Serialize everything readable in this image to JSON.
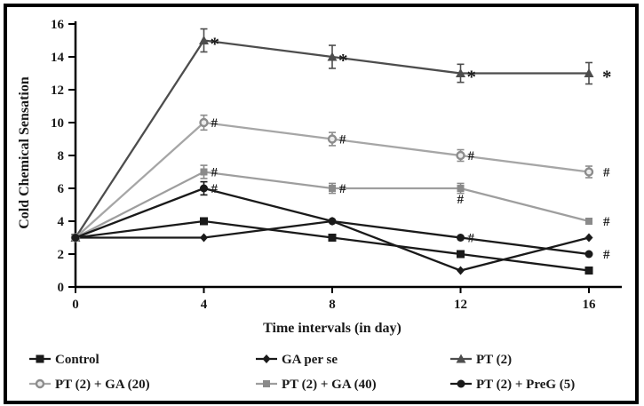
{
  "figure": {
    "background": "#ffffff",
    "border_color": "#000000"
  },
  "chart_data": {
    "type": "line",
    "title": "",
    "xlabel": "Time intervals (in day)",
    "ylabel": "Cold Chemical Sensation",
    "x": [
      0,
      4,
      8,
      12,
      16
    ],
    "xlim": [
      0,
      17
    ],
    "ylim": [
      0,
      16
    ],
    "ytick_step": 2,
    "grid": false,
    "legend_position": "bottom",
    "series": [
      {
        "name": "Control",
        "marker": "square",
        "color": "#1a1a1a",
        "marker_color": "#1a1a1a",
        "values": [
          3,
          4,
          3,
          2,
          1
        ],
        "errors": [
          0,
          0,
          0,
          0,
          0
        ],
        "annotations": []
      },
      {
        "name": "GA per se",
        "marker": "diamond",
        "color": "#1a1a1a",
        "marker_color": "#1a1a1a",
        "values": [
          3,
          3,
          4,
          1,
          3
        ],
        "errors": [
          0,
          0,
          0,
          0,
          0
        ],
        "annotations": []
      },
      {
        "name": "PT (2)",
        "marker": "triangle",
        "color": "#4d4d4d",
        "marker_color": "#4d4d4d",
        "values": [
          3,
          15,
          14,
          13,
          13
        ],
        "errors": [
          0,
          0.7,
          0.7,
          0.55,
          0.65
        ],
        "annotations": [
          {
            "x": 4,
            "text": "*",
            "pos": "right"
          },
          {
            "x": 8,
            "text": "*",
            "pos": "right"
          },
          {
            "x": 12,
            "text": "*",
            "pos": "right"
          },
          {
            "x": 16,
            "text": "*",
            "pos": "right-far"
          }
        ]
      },
      {
        "name": "PT (2) + GA (20)",
        "marker": "open-circle",
        "color": "#a6a6a6",
        "marker_color": "#8c8c8c",
        "values": [
          3,
          10,
          9,
          8,
          7
        ],
        "errors": [
          0,
          0.45,
          0.4,
          0.35,
          0.35
        ],
        "annotations": [
          {
            "x": 4,
            "text": "#",
            "pos": "right"
          },
          {
            "x": 8,
            "text": "#",
            "pos": "right"
          },
          {
            "x": 12,
            "text": "#",
            "pos": "right"
          },
          {
            "x": 16,
            "text": "#",
            "pos": "right-far"
          }
        ]
      },
      {
        "name": "PT (2) + GA (40)",
        "marker": "square-small",
        "color": "#9e9e9e",
        "marker_color": "#8a8a8a",
        "values": [
          3,
          7,
          6,
          6,
          4
        ],
        "errors": [
          0,
          0.4,
          0.3,
          0.3,
          0
        ],
        "annotations": [
          {
            "x": 4,
            "text": "#",
            "pos": "right"
          },
          {
            "x": 8,
            "text": "#",
            "pos": "right"
          },
          {
            "x": 12,
            "text": "#",
            "pos": "below"
          },
          {
            "x": 16,
            "text": "#",
            "pos": "right-far"
          }
        ]
      },
      {
        "name": "PT (2) + PreG (5)",
        "marker": "circle",
        "color": "#1a1a1a",
        "marker_color": "#1a1a1a",
        "values": [
          3,
          6,
          4,
          3,
          2
        ],
        "errors": [
          0,
          0.4,
          0,
          0,
          0
        ],
        "annotations": [
          {
            "x": 4,
            "text": "#",
            "pos": "right"
          },
          {
            "x": 12,
            "text": "#",
            "pos": "right"
          },
          {
            "x": 16,
            "text": "#",
            "pos": "right-far"
          }
        ]
      }
    ]
  }
}
